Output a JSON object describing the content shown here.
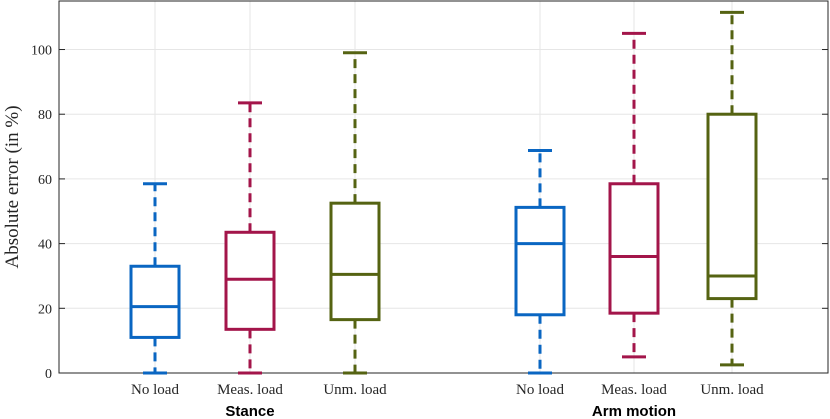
{
  "chart_data": {
    "type": "box",
    "title": "",
    "ylabel": "Absolute error (in %)",
    "xlabel": "",
    "ylim": [
      0,
      115
    ],
    "yticks": [
      0,
      20,
      40,
      60,
      80,
      100
    ],
    "grid": true,
    "groups": [
      {
        "name": "Stance",
        "categories": [
          "No load",
          "Meas. load",
          "Unm. load"
        ]
      },
      {
        "name": "Arm motion",
        "categories": [
          "No load",
          "Meas. load",
          "Unm. load"
        ]
      }
    ],
    "series_colors": {
      "No load": "#0a66c2",
      "Meas. load": "#a3154a",
      "Unm. load": "#556312"
    },
    "boxes": [
      {
        "group": "Stance",
        "category": "No load",
        "min": 0,
        "q1": 11,
        "median": 20.5,
        "q3": 33,
        "max": 58.5
      },
      {
        "group": "Stance",
        "category": "Meas. load",
        "min": 0,
        "q1": 13.5,
        "median": 29,
        "q3": 43.5,
        "max": 83.5
      },
      {
        "group": "Stance",
        "category": "Unm. load",
        "min": 0,
        "q1": 16.5,
        "median": 30.5,
        "q3": 52.5,
        "max": 99
      },
      {
        "group": "Arm motion",
        "category": "No load",
        "min": 0,
        "q1": 18,
        "median": 40,
        "q3": 51.2,
        "max": 68.8
      },
      {
        "group": "Arm motion",
        "category": "Meas. load",
        "min": 5,
        "q1": 18.5,
        "median": 36,
        "q3": 58.5,
        "max": 105
      },
      {
        "group": "Arm motion",
        "category": "Unm. load",
        "min": 2.5,
        "q1": 23,
        "median": 30,
        "q3": 80,
        "max": 111.5
      }
    ]
  }
}
